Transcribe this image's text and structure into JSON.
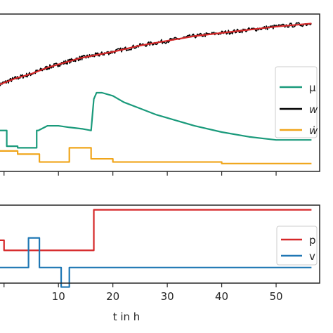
{
  "chart_data": [
    {
      "type": "line",
      "panel": "top",
      "xlim": [
        -1,
        58
      ],
      "ylim": [
        0,
        1
      ],
      "grid": false,
      "legend_placement": "right",
      "series": [
        {
          "name": "μ",
          "legend_label": "μ",
          "color": "#1a9a7b",
          "x": [
            -1,
            0.5,
            0.5,
            2.5,
            2.5,
            6,
            6,
            6.3,
            8,
            10,
            12,
            14.5,
            16,
            16.5,
            17,
            18,
            20,
            22,
            25,
            28,
            30,
            35,
            40,
            45,
            50,
            56.5
          ],
          "y": [
            0.26,
            0.26,
            0.16,
            0.16,
            0.15,
            0.15,
            0.26,
            0.26,
            0.29,
            0.29,
            0.28,
            0.27,
            0.26,
            0.46,
            0.5,
            0.5,
            0.48,
            0.44,
            0.4,
            0.36,
            0.34,
            0.29,
            0.25,
            0.22,
            0.2,
            0.2
          ]
        },
        {
          "name": "w",
          "legend_label": "w",
          "color": "#000000",
          "noisy": true,
          "x": [
            -1,
            2,
            5,
            8,
            11,
            14,
            17,
            20,
            25,
            30,
            35,
            40,
            45,
            50,
            56.5
          ],
          "y": [
            0.55,
            0.59,
            0.62,
            0.66,
            0.69,
            0.72,
            0.74,
            0.76,
            0.8,
            0.83,
            0.86,
            0.88,
            0.9,
            0.92,
            0.94
          ]
        },
        {
          "name": "w_fit",
          "color": "#d62728",
          "x": [
            -1,
            2,
            5,
            8,
            11,
            14,
            17,
            20,
            25,
            30,
            35,
            40,
            45,
            50,
            56.5
          ],
          "y": [
            0.55,
            0.59,
            0.62,
            0.66,
            0.69,
            0.72,
            0.74,
            0.76,
            0.8,
            0.83,
            0.86,
            0.88,
            0.9,
            0.92,
            0.94
          ]
        },
        {
          "name": "ẇ",
          "legend_label": "ẇ",
          "color": "#f0a51a",
          "step": true,
          "x": [
            -1,
            2.5,
            2.5,
            6.5,
            6.5,
            10.5,
            10.5,
            12,
            12,
            16,
            16,
            20,
            20,
            24,
            24,
            40,
            40,
            56.5
          ],
          "y": [
            0.13,
            0.13,
            0.11,
            0.11,
            0.06,
            0.06,
            0.06,
            0.06,
            0.15,
            0.15,
            0.08,
            0.08,
            0.06,
            0.06,
            0.06,
            0.06,
            0.05,
            0.05
          ]
        }
      ]
    },
    {
      "type": "line",
      "panel": "bottom",
      "xlim": [
        -1,
        58
      ],
      "ylim": [
        0,
        1
      ],
      "xlabel": "t in h",
      "xticks": [
        10,
        20,
        30,
        40,
        50
      ],
      "xticklabels": [
        "10",
        "20",
        "30",
        "40",
        "50"
      ],
      "grid": false,
      "legend_placement": "right",
      "series": [
        {
          "name": "p",
          "legend_label": "p",
          "color": "#d62728",
          "step": true,
          "x": [
            -1,
            0,
            0,
            1,
            1,
            6,
            6,
            16.5,
            16.5,
            56.5
          ],
          "y": [
            0.55,
            0.55,
            0.42,
            0.42,
            0.42,
            0.42,
            0.42,
            0.42,
            0.94,
            0.94
          ]
        },
        {
          "name": "v",
          "legend_label": "v",
          "color": "#1f77b4",
          "step": true,
          "x": [
            -1,
            0,
            0,
            2.5,
            2.5,
            4.5,
            4.5,
            6.5,
            6.5,
            8.5,
            8.5,
            10.5,
            10.5,
            12,
            12,
            56.5
          ],
          "y": [
            0.2,
            0.2,
            0.2,
            0.2,
            0.2,
            0.2,
            0.58,
            0.58,
            0.2,
            0.2,
            0.2,
            0.2,
            -0.05,
            -0.05,
            0.2,
            0.2
          ]
        }
      ]
    }
  ]
}
